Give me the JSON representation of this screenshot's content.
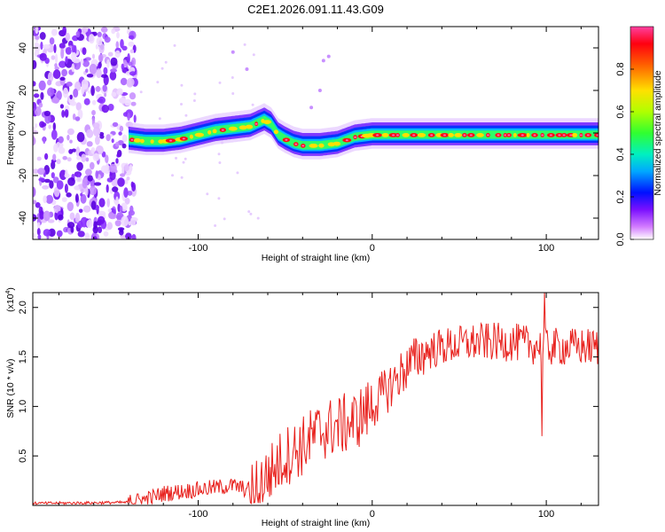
{
  "title": "C2E1.2026.091.11.43.G09",
  "chart_data": [
    {
      "type": "heatmap",
      "title": "C2E1.2026.091.11.43.G09",
      "xlabel": "Height of straight line (km)",
      "ylabel": "Frequency (Hz)",
      "xlim": [
        -195,
        130
      ],
      "ylim": [
        -50,
        50
      ],
      "x_ticks": [
        -100,
        0,
        100
      ],
      "x_tick_labels": [
        "-100",
        "0",
        "100"
      ],
      "y_ticks": [
        -40,
        -20,
        0,
        20,
        40
      ],
      "y_tick_labels": [
        "-40",
        "-20",
        "0",
        "20",
        "40"
      ],
      "colorbar": {
        "label": "Normalized spectral amplitude",
        "range": [
          0,
          1
        ],
        "ticks": [
          0.0,
          0.2,
          0.4,
          0.6,
          0.8
        ],
        "tick_labels": [
          "0.0",
          "0.2",
          "0.4",
          "0.6",
          "0.8"
        ],
        "colors": [
          "#ffffff",
          "#c040ff",
          "#6000ff",
          "#0000ff",
          "#00c8ff",
          "#00ff80",
          "#80ff00",
          "#ffff00",
          "#ff8000",
          "#ff0000",
          "#ff40c0"
        ]
      },
      "noise_region_x": [
        -195,
        -138
      ],
      "ridge": {
        "name": "Doppler ridge",
        "x": [
          -140,
          -130,
          -120,
          -110,
          -100,
          -90,
          -80,
          -70,
          -62,
          -58,
          -54,
          -50,
          -45,
          -40,
          -30,
          -20,
          -10,
          0,
          10,
          20,
          30,
          40,
          50,
          60,
          70,
          80,
          90,
          100,
          110,
          120,
          130
        ],
        "y": [
          -3,
          -4,
          -4,
          -3,
          -1,
          1,
          2,
          3,
          6,
          4,
          -1,
          -3,
          -5,
          -6,
          -6,
          -5,
          -2,
          -1,
          -1,
          -1,
          -1,
          -1,
          -1,
          -1,
          -1,
          -1,
          -1,
          -1,
          -1,
          -1,
          -1
        ]
      }
    },
    {
      "type": "line",
      "xlabel": "Height of straight line (km)",
      "ylabel": "SNR (10 * v/v)",
      "scale_label": "(x10",
      "scale_exp": "4",
      "scale_close": ")",
      "xlim": [
        -195,
        130
      ],
      "ylim": [
        0,
        2.15
      ],
      "x_ticks": [
        -100,
        0,
        100
      ],
      "x_tick_labels": [
        "-100",
        "0",
        "100"
      ],
      "y_ticks": [
        0.5,
        1.0,
        1.5,
        2.0
      ],
      "y_tick_labels": [
        "0.5",
        "1.0",
        "1.5",
        "2.0"
      ],
      "color": "#e8201c",
      "trend": {
        "x": [
          -195,
          -140,
          -130,
          -120,
          -100,
          -90,
          -80,
          -70,
          -60,
          -50,
          -40,
          -30,
          -20,
          -10,
          0,
          10,
          20,
          30,
          40,
          60,
          80,
          100,
          130
        ],
        "y": [
          0.02,
          0.03,
          0.06,
          0.12,
          0.16,
          0.18,
          0.2,
          0.15,
          0.3,
          0.5,
          0.6,
          0.75,
          0.8,
          0.85,
          1.0,
          1.2,
          1.4,
          1.55,
          1.6,
          1.65,
          1.65,
          1.6,
          1.6
        ]
      },
      "notable_points": [
        {
          "x": 99,
          "y": 2.15
        },
        {
          "x": 98,
          "y": 0.7
        },
        {
          "x": -35,
          "y": 1.0
        }
      ]
    }
  ]
}
